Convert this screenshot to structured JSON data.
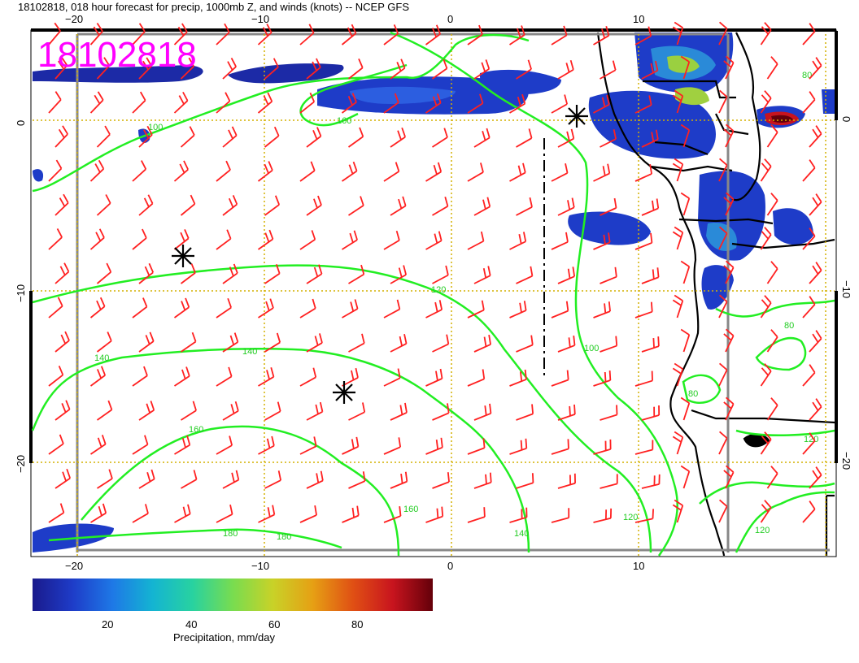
{
  "header": {
    "title": "18102818, 018 hour forecast for precip, 1000mb Z, and winds (knots) -- NCEP GFS",
    "stamp": "18102818",
    "stamp_color": "#ff00ff"
  },
  "axes": {
    "lon_ticks": [
      "−20",
      "−10",
      "0",
      "10"
    ],
    "lat_ticks": [
      "0",
      "−10",
      "−20"
    ],
    "grid_color": "#d4b000"
  },
  "contours": {
    "color": "#22ee22",
    "labels": [
      "100",
      "120",
      "140",
      "160",
      "180",
      "140",
      "160",
      "140",
      "180",
      "100",
      "120",
      "160",
      "80",
      "80",
      "80",
      "120",
      "120"
    ]
  },
  "colorbar": {
    "ticks": [
      "20",
      "40",
      "60",
      "80"
    ],
    "label": "Precipitation, mm/day",
    "stops": [
      "#1a1a8c",
      "#1e3cc8",
      "#1e78e6",
      "#14b4d2",
      "#28d2a0",
      "#78dc50",
      "#c8d228",
      "#e6a014",
      "#e05014",
      "#c8141e",
      "#64000a"
    ]
  },
  "markers": {
    "color": "#000000",
    "names": [
      "cross-marker-west",
      "cross-marker-south",
      "cross-marker-northeast"
    ]
  },
  "wind": {
    "color": "#ff2020"
  }
}
